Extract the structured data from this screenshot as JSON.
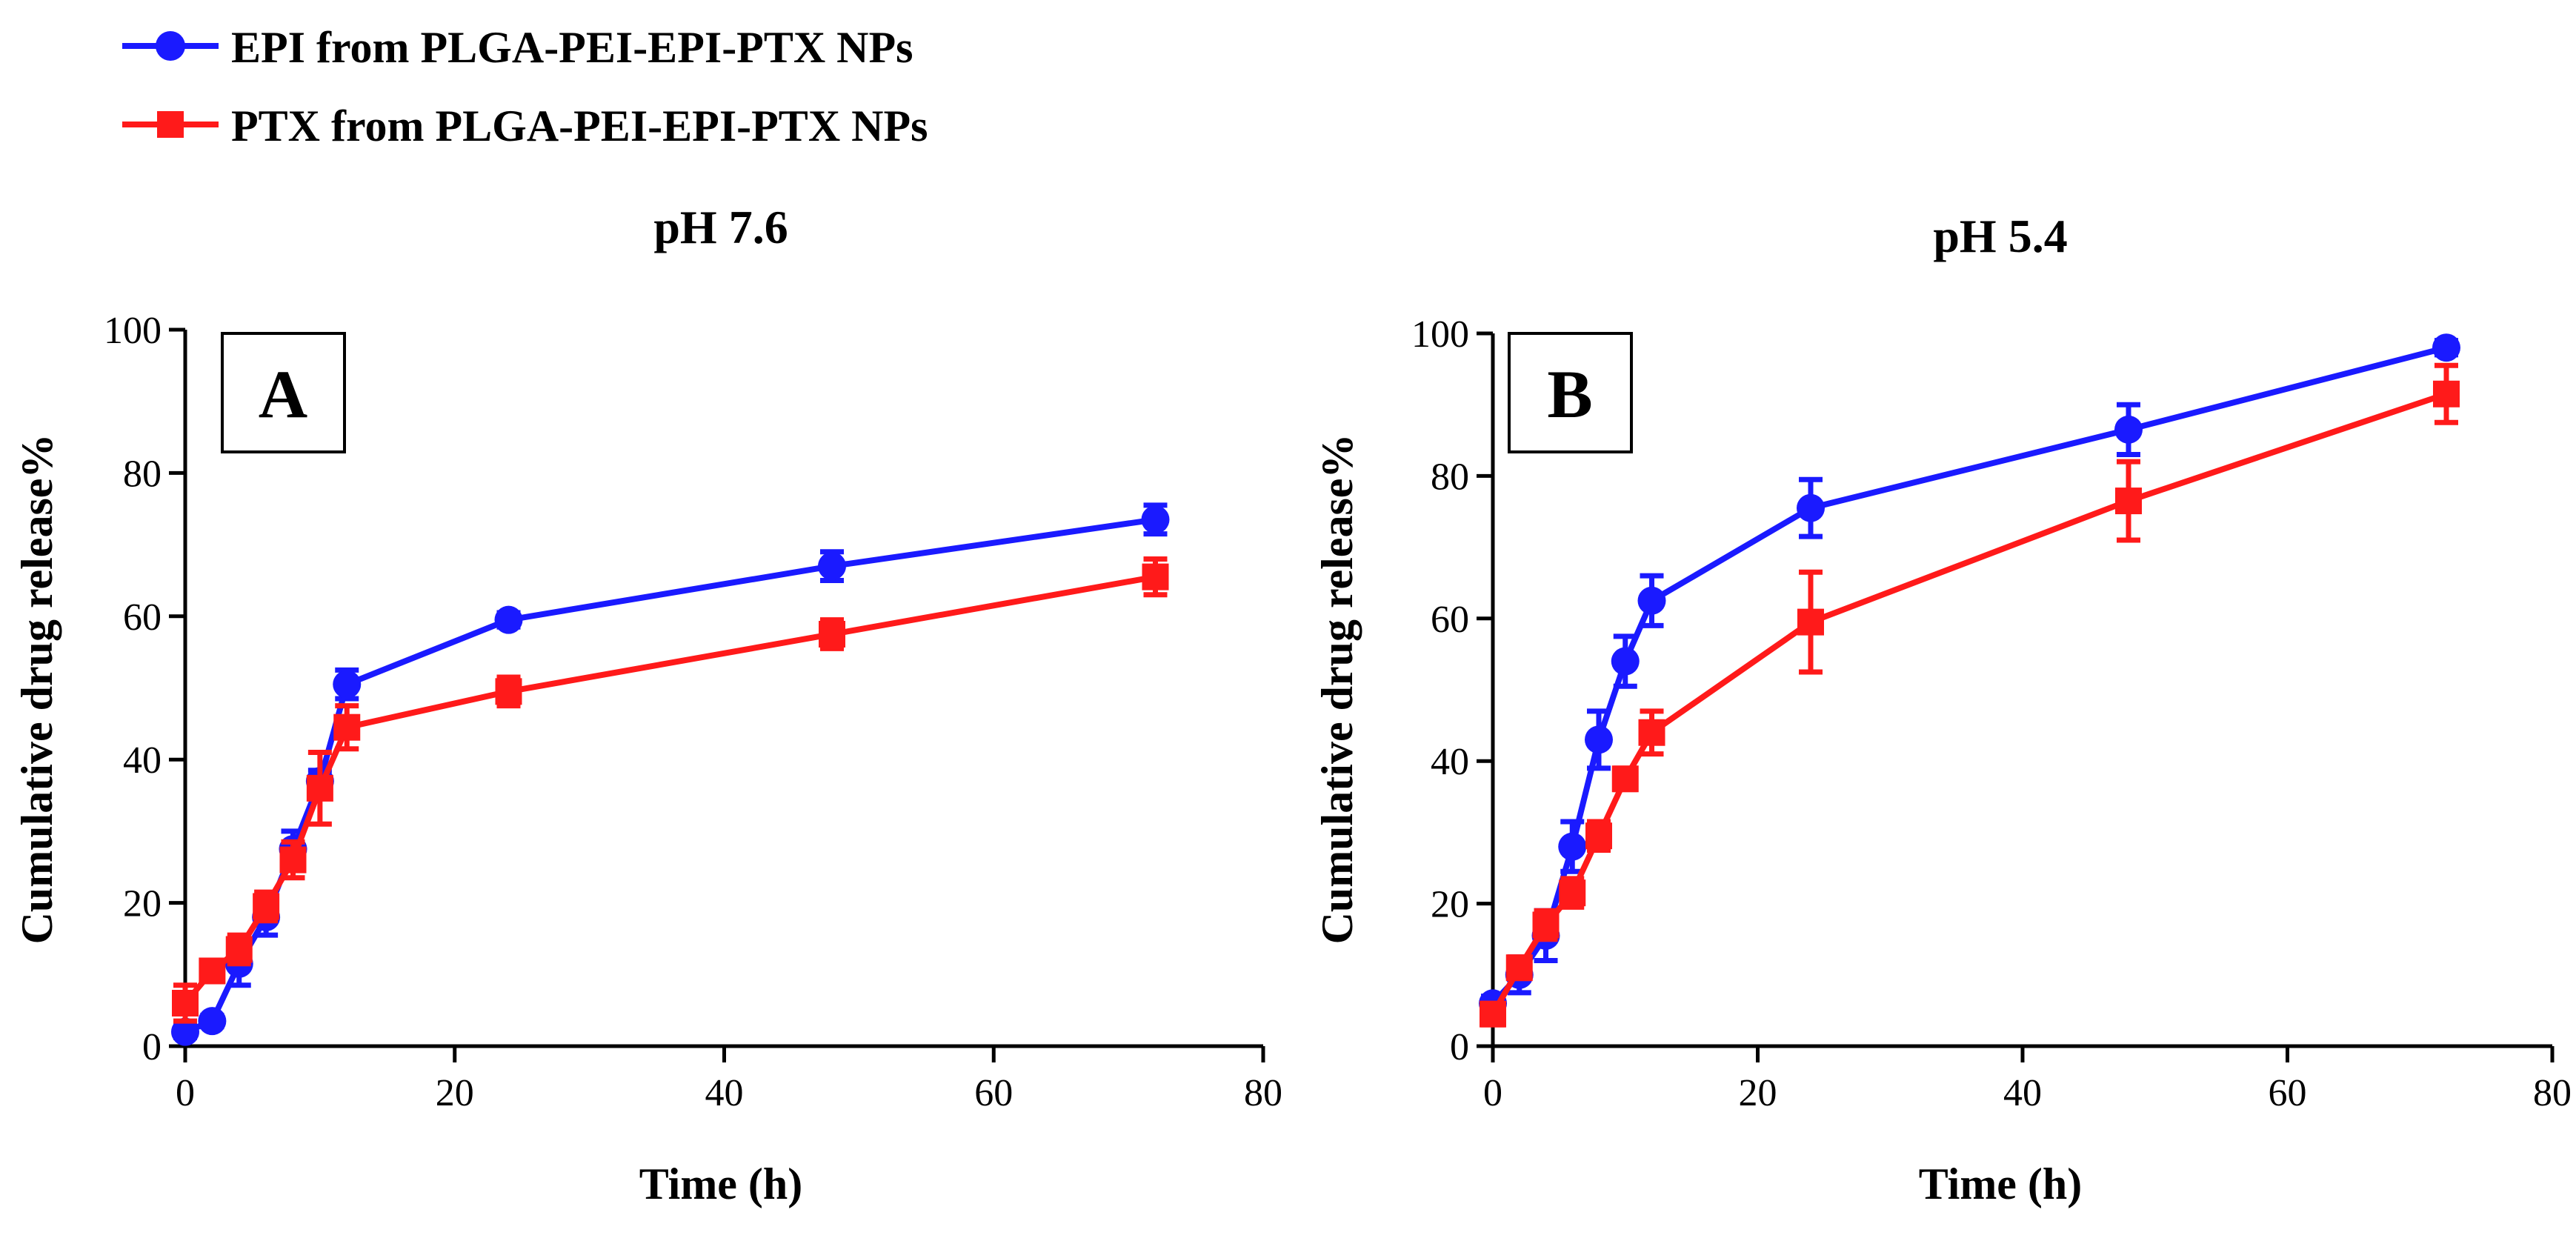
{
  "legend": [
    {
      "name": "EPI from PLGA-PEI-EPI-PTX NPs",
      "color": "#1a1aff",
      "marker": "circle"
    },
    {
      "name": "PTX from PLGA-PEI-EPI-PTX NPs",
      "color": "#ff1a1a",
      "marker": "square"
    }
  ],
  "chart_data": [
    {
      "type": "line",
      "panel_label": "A",
      "title": "pH 7.6",
      "xlabel": "Time (h)",
      "ylabel": "Cumulative drug release%",
      "xlim": [
        0,
        80
      ],
      "ylim": [
        0,
        100
      ],
      "xticks": [
        0,
        20,
        40,
        60,
        80
      ],
      "yticks": [
        0,
        20,
        40,
        60,
        80,
        100
      ],
      "grid": false,
      "x": [
        0,
        2,
        4,
        6,
        8,
        10,
        12,
        24,
        48,
        72
      ],
      "series": [
        {
          "name": "EPI from PLGA-PEI-EPI-PTX NPs",
          "values": [
            2,
            3.5,
            11.5,
            18,
            27.5,
            37,
            50.5,
            59.5,
            67,
            73.5
          ],
          "errors": [
            0.8,
            0.8,
            3,
            2.5,
            2.5,
            1.5,
            2,
            1,
            2,
            2
          ]
        },
        {
          "name": "PTX from PLGA-PEI-EPI-PTX NPs",
          "values": [
            6,
            10.5,
            13.5,
            19.5,
            26,
            36,
            44.5,
            49.5,
            57.5,
            65.5
          ],
          "errors": [
            2.5,
            1.5,
            2,
            2,
            2.5,
            5,
            3,
            2,
            2,
            2.5
          ]
        }
      ]
    },
    {
      "type": "line",
      "panel_label": "B",
      "title": "pH 5.4",
      "xlabel": "Time (h)",
      "ylabel": "Cumulative drug release%",
      "xlim": [
        0,
        80
      ],
      "ylim": [
        0,
        100
      ],
      "xticks": [
        0,
        20,
        40,
        60,
        80
      ],
      "yticks": [
        0,
        20,
        40,
        60,
        80,
        100
      ],
      "grid": false,
      "x": [
        0,
        2,
        4,
        6,
        8,
        10,
        12,
        24,
        48,
        72
      ],
      "series": [
        {
          "name": "EPI from PLGA-PEI-EPI-PTX NPs",
          "values": [
            6,
            10,
            15.5,
            28,
            43,
            54,
            62.5,
            75.5,
            86.5,
            98
          ],
          "errors": [
            1,
            2.5,
            3.5,
            3.5,
            4,
            3.5,
            3.5,
            4,
            3.5,
            1
          ]
        },
        {
          "name": "PTX from PLGA-PEI-EPI-PTX NPs",
          "values": [
            4.5,
            11,
            17,
            21.5,
            29.5,
            37.5,
            44,
            59.5,
            76.5,
            91.5
          ],
          "errors": [
            1.5,
            1.5,
            2,
            2,
            2,
            1.5,
            3,
            7,
            5.5,
            4
          ]
        }
      ]
    }
  ]
}
